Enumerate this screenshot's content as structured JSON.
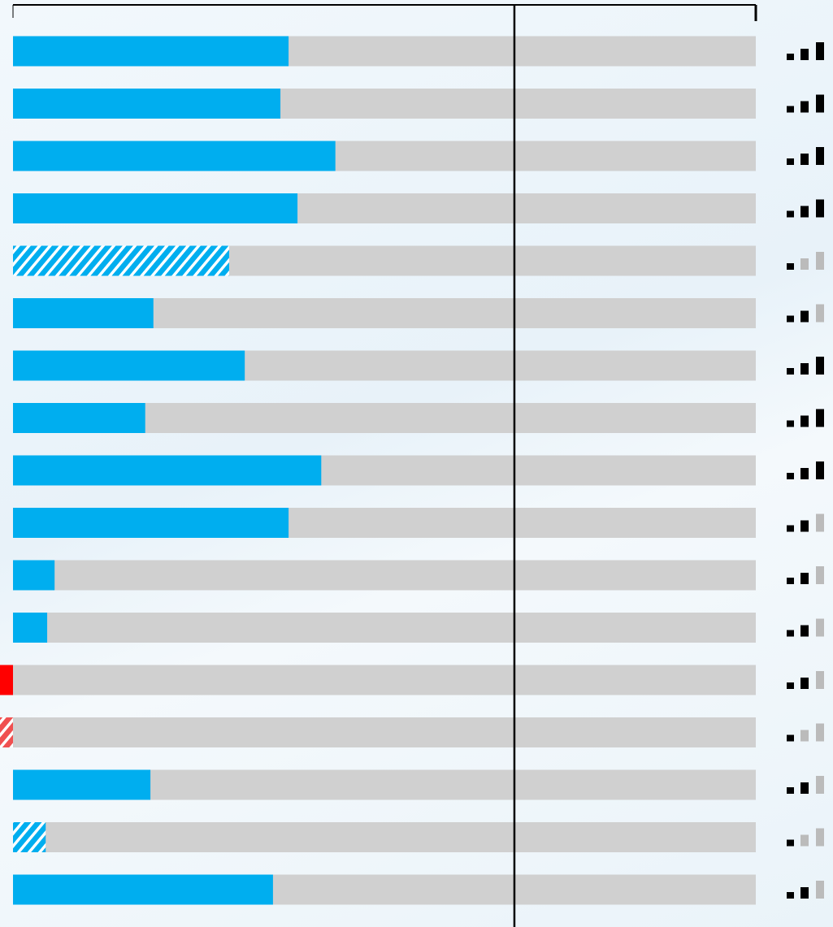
{
  "chart_data": {
    "type": "bar",
    "values": [
      37.1,
      36.0,
      43.4,
      38.3,
      29.1,
      18.9,
      31.2,
      17.8,
      41.5,
      37.1,
      5.6,
      4.6,
      -1.8,
      -1.8,
      18.5,
      4.4,
      35.0
    ],
    "hatched": [
      false,
      false,
      false,
      false,
      true,
      false,
      false,
      false,
      false,
      false,
      false,
      false,
      false,
      true,
      false,
      true,
      false
    ],
    "signal": [
      3,
      3,
      3,
      3,
      1,
      2,
      3,
      3,
      3,
      2,
      2,
      2,
      2,
      1,
      2,
      1,
      2
    ],
    "color": "#00aeef",
    "negative_color": "#ff0000",
    "track_color": "#d0d0d0",
    "xlim": [
      0,
      100
    ],
    "xticks": [
      0,
      100
    ],
    "reference": 67.5
  }
}
